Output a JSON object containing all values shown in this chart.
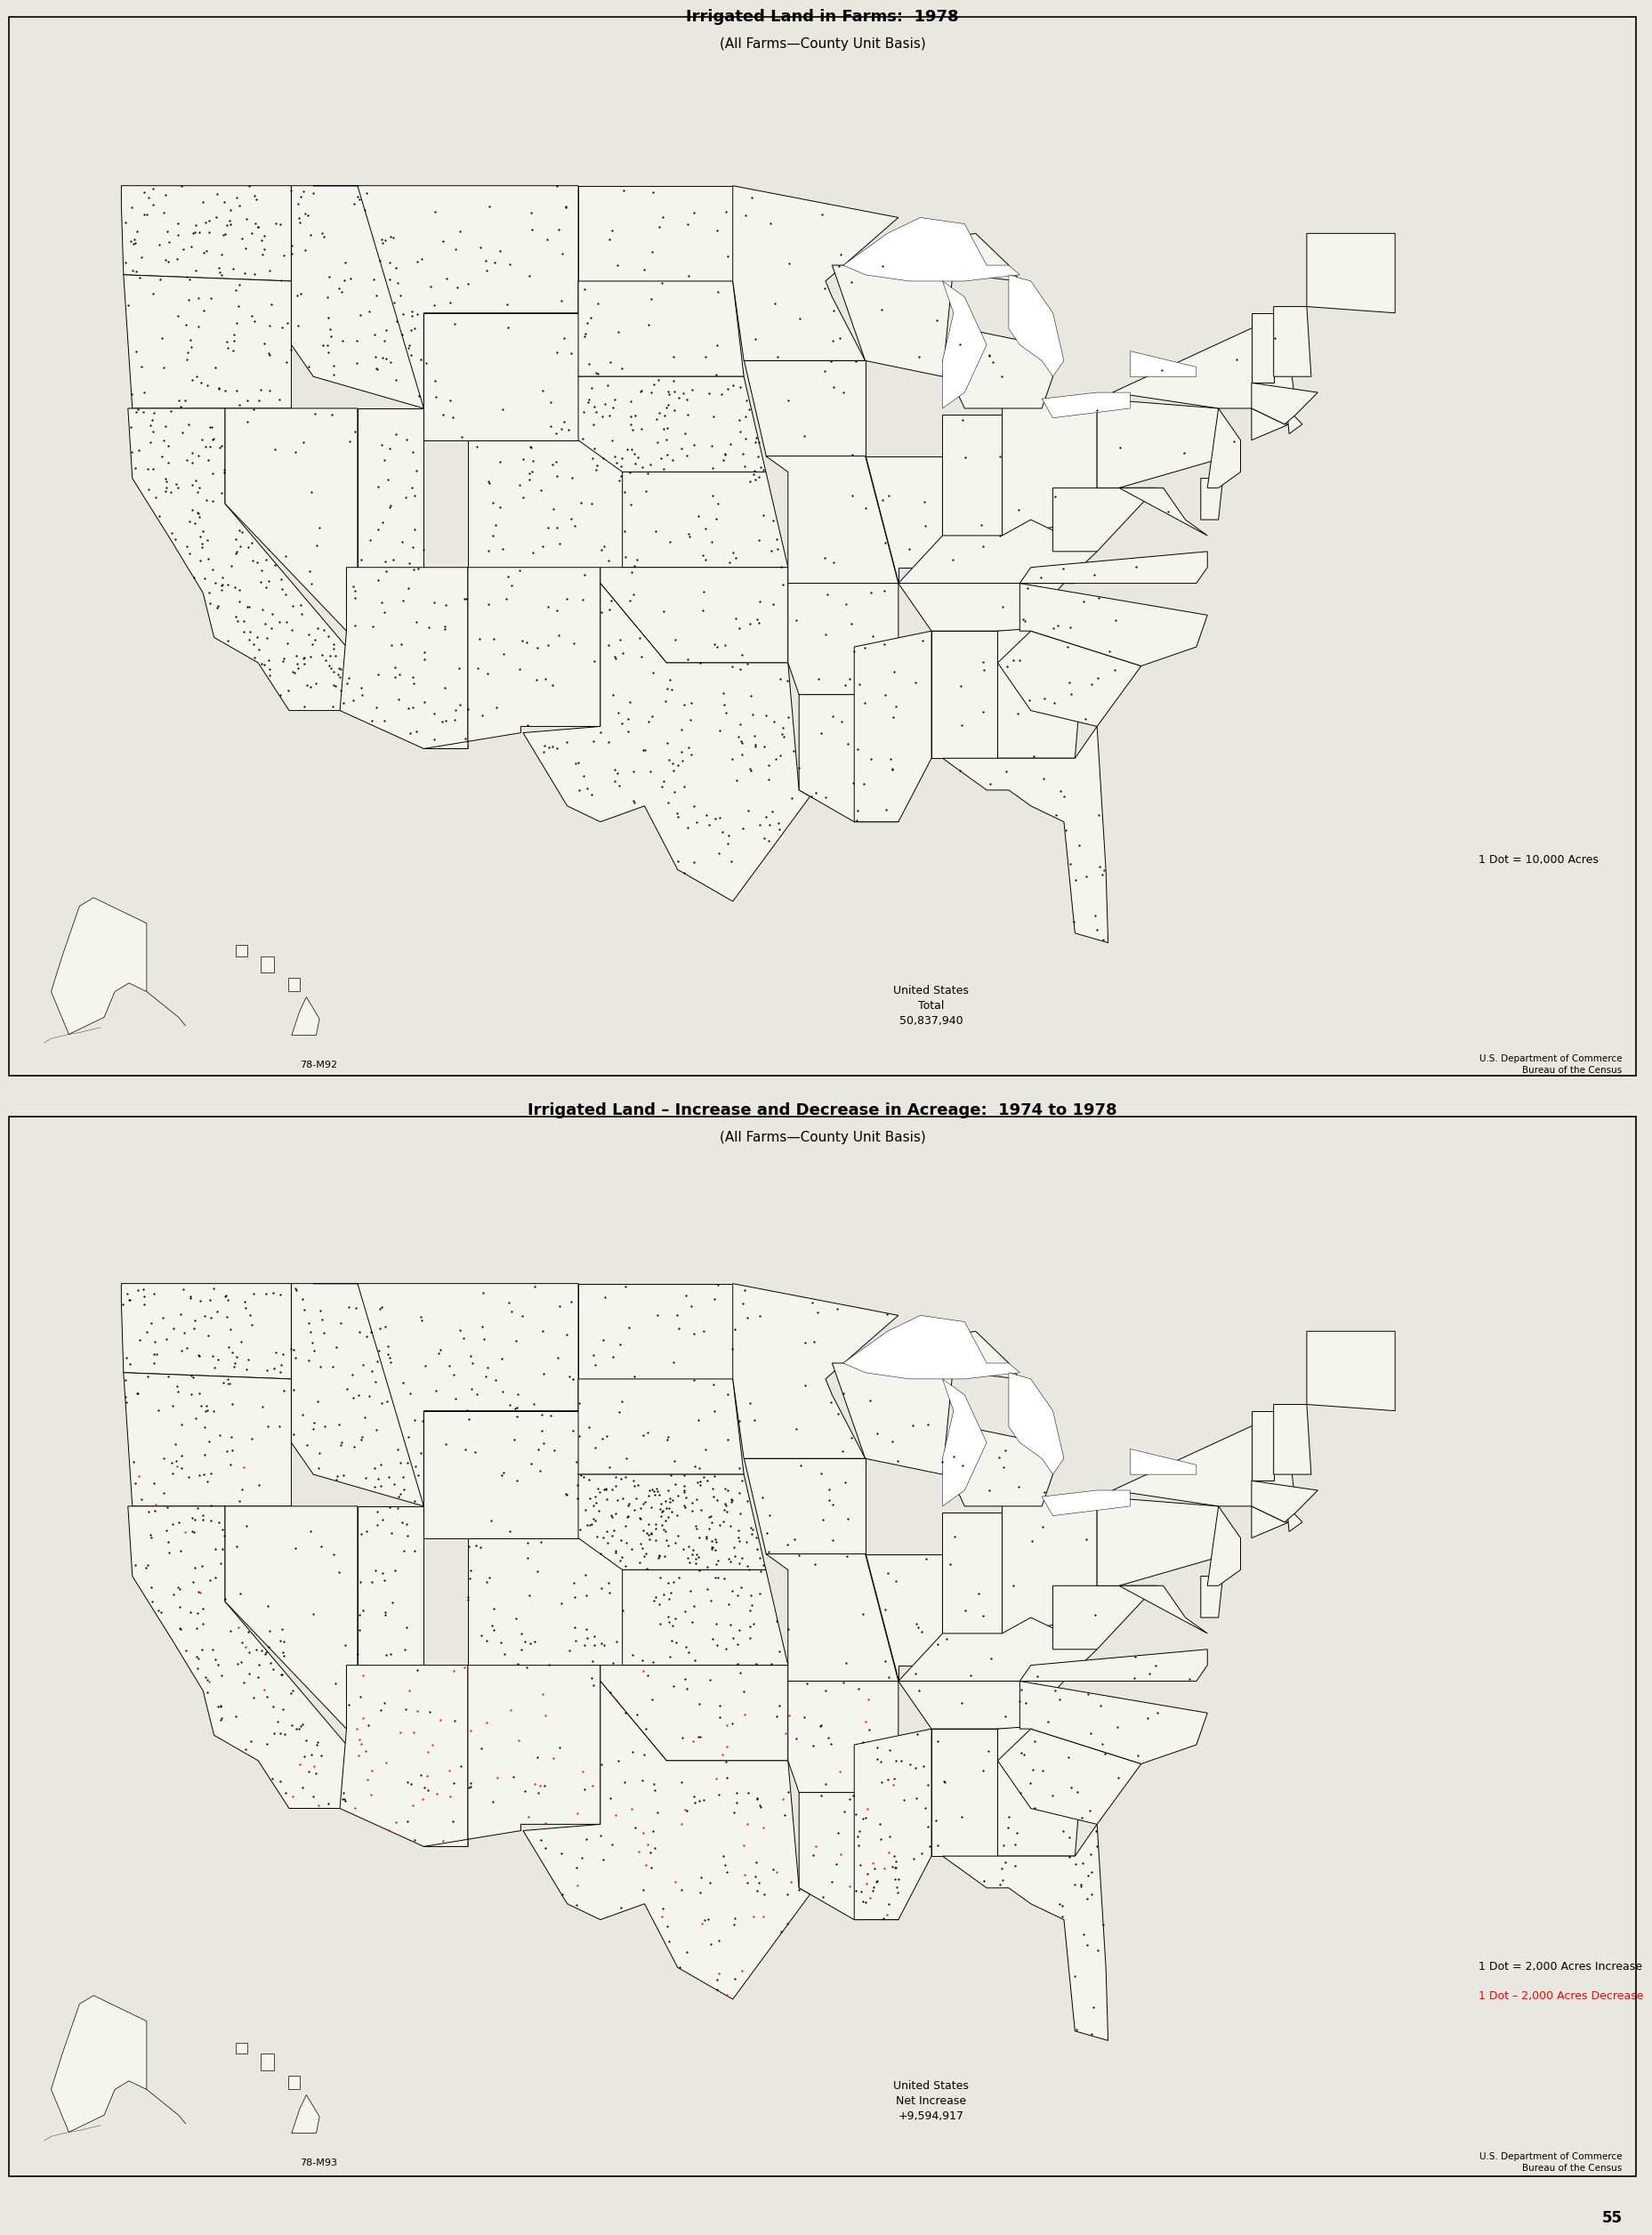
{
  "page_background": "#e8e8e0",
  "map_background": "#f5f5f0",
  "page_number": "55",
  "map1": {
    "title_line1": "Irrigated Land in Farms:  1978",
    "title_line2": "(All Farms—County Unit Basis)",
    "dot_note": "1 Dot = 10,000 Acres",
    "total_label": "United States\nTotal\n50,837,940",
    "map_code": "78-M92",
    "source": "U.S. Department of Commerce\nBureau of the Census"
  },
  "map2": {
    "title_line1": "Irrigated Land – Increase and Decrease in Acreage:  1974 to 1978",
    "title_line2": "(All Farms—County Unit Basis)",
    "dot_note1": "1 Dot = 2,000 Acres Increase",
    "dot_note2": "1 Dot – 2,000 Acres Decrease",
    "total_label": "United States\nNet Increase\n+9,594,917",
    "map_code": "78-M93",
    "source": "U.S. Department of Commerce\nBureau of the Census"
  }
}
